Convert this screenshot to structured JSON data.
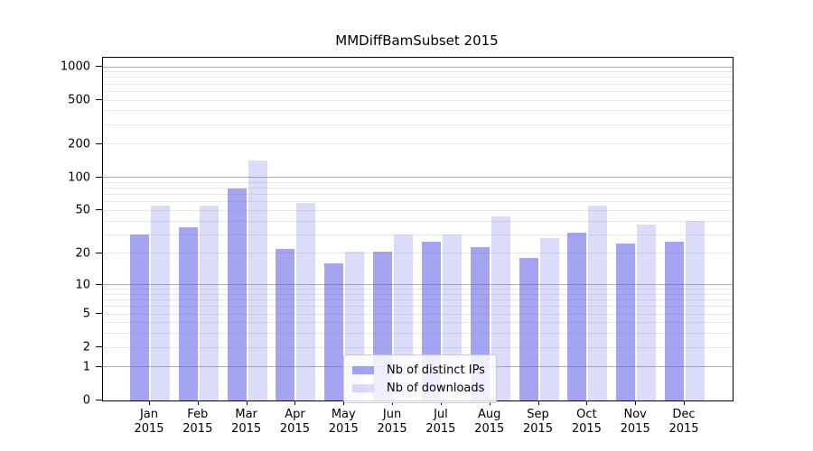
{
  "title": "MMDiffBamSubset 2015",
  "chart_data": {
    "type": "bar",
    "title": "MMDiffBamSubset 2015",
    "categories": [
      "Jan 2015",
      "Feb 2015",
      "Mar 2015",
      "Apr 2015",
      "May 2015",
      "Jun 2015",
      "Jul 2015",
      "Aug 2015",
      "Sep 2015",
      "Oct 2015",
      "Nov 2015",
      "Dec 2015"
    ],
    "series": [
      {
        "name": "Nb of distinct IPs",
        "color": "rgba(90,90,230,0.55)",
        "values": [
          30,
          35,
          80,
          22,
          16,
          21,
          26,
          23,
          18,
          31,
          25,
          26
        ]
      },
      {
        "name": "Nb of downloads",
        "color": "rgba(90,90,230,0.22)",
        "values": [
          55,
          55,
          143,
          59,
          21,
          30,
          30,
          44,
          28,
          55,
          37,
          40
        ]
      }
    ],
    "xlabel": "",
    "ylabel": "",
    "yscale": "log1p",
    "yticks": [
      0,
      1,
      2,
      5,
      10,
      20,
      50,
      100,
      200,
      500,
      1000
    ],
    "ylim": [
      0,
      1200
    ],
    "grid": true,
    "legend_position": "lower center"
  },
  "colors": {
    "grid_major": "#b0b0b0",
    "grid_minor": "#e8e8e8",
    "spine": "#000000",
    "legend_border": "#cccccc",
    "legend_bg": "rgba(255,255,255,0.82)"
  }
}
